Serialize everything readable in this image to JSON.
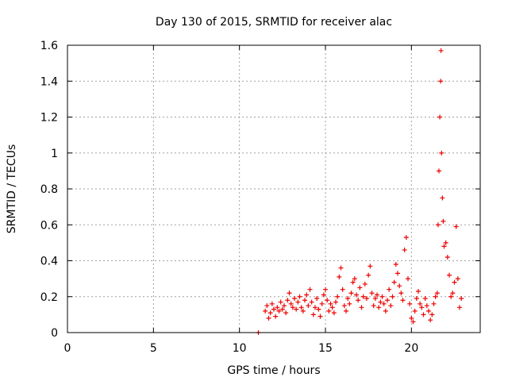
{
  "chart_data": {
    "type": "scatter",
    "title": "Day 130 of 2015, SRMTID for receiver alac",
    "xlabel": "GPS time / hours",
    "ylabel": "SRMTID / TECUs",
    "xlim": [
      0,
      24
    ],
    "ylim": [
      0,
      1.6
    ],
    "xticks": [
      0,
      5,
      10,
      15,
      20
    ],
    "xtick_labels": [
      "0",
      "5",
      "10",
      "15",
      "20"
    ],
    "yticks": [
      0,
      0.2,
      0.4,
      0.6,
      0.8,
      1.0,
      1.2,
      1.4,
      1.6
    ],
    "ytick_labels": [
      "0",
      "0.2",
      "0.4",
      "0.6",
      "0.8",
      "1",
      "1.2",
      "1.4",
      "1.6"
    ],
    "grid": true,
    "marker": "+",
    "colors": {
      "series": "#ee0000",
      "grid": "#a0a0a0",
      "axes": "#000000"
    },
    "series": [
      {
        "name": "SRMTID",
        "points": [
          [
            11.1,
            0.0
          ],
          [
            11.5,
            0.12
          ],
          [
            11.6,
            0.15
          ],
          [
            11.7,
            0.08
          ],
          [
            11.8,
            0.11
          ],
          [
            11.9,
            0.16
          ],
          [
            12.0,
            0.13
          ],
          [
            12.1,
            0.09
          ],
          [
            12.2,
            0.14
          ],
          [
            12.3,
            0.12
          ],
          [
            12.4,
            0.17
          ],
          [
            12.5,
            0.13
          ],
          [
            12.6,
            0.15
          ],
          [
            12.7,
            0.11
          ],
          [
            12.8,
            0.18
          ],
          [
            12.9,
            0.22
          ],
          [
            13.0,
            0.16
          ],
          [
            13.1,
            0.14
          ],
          [
            13.2,
            0.19
          ],
          [
            13.3,
            0.13
          ],
          [
            13.4,
            0.17
          ],
          [
            13.5,
            0.2
          ],
          [
            13.6,
            0.14
          ],
          [
            13.7,
            0.12
          ],
          [
            13.8,
            0.18
          ],
          [
            13.9,
            0.21
          ],
          [
            14.0,
            0.15
          ],
          [
            14.1,
            0.24
          ],
          [
            14.2,
            0.17
          ],
          [
            14.3,
            0.1
          ],
          [
            14.4,
            0.14
          ],
          [
            14.5,
            0.19
          ],
          [
            14.6,
            0.13
          ],
          [
            14.7,
            0.09
          ],
          [
            14.8,
            0.16
          ],
          [
            14.9,
            0.21
          ],
          [
            15.0,
            0.24
          ],
          [
            15.1,
            0.18
          ],
          [
            15.2,
            0.12
          ],
          [
            15.3,
            0.16
          ],
          [
            15.4,
            0.14
          ],
          [
            15.5,
            0.11
          ],
          [
            15.6,
            0.17
          ],
          [
            15.7,
            0.2
          ],
          [
            15.8,
            0.31
          ],
          [
            15.9,
            0.36
          ],
          [
            16.0,
            0.24
          ],
          [
            16.1,
            0.15
          ],
          [
            16.2,
            0.12
          ],
          [
            16.3,
            0.19
          ],
          [
            16.4,
            0.16
          ],
          [
            16.5,
            0.22
          ],
          [
            16.6,
            0.28
          ],
          [
            16.7,
            0.3
          ],
          [
            16.8,
            0.21
          ],
          [
            16.9,
            0.18
          ],
          [
            17.0,
            0.25
          ],
          [
            17.1,
            0.14
          ],
          [
            17.2,
            0.2
          ],
          [
            17.3,
            0.27
          ],
          [
            17.4,
            0.19
          ],
          [
            17.5,
            0.32
          ],
          [
            17.6,
            0.37
          ],
          [
            17.7,
            0.22
          ],
          [
            17.8,
            0.15
          ],
          [
            17.9,
            0.19
          ],
          [
            18.0,
            0.21
          ],
          [
            18.1,
            0.14
          ],
          [
            18.2,
            0.17
          ],
          [
            18.3,
            0.2
          ],
          [
            18.4,
            0.16
          ],
          [
            18.5,
            0.12
          ],
          [
            18.6,
            0.18
          ],
          [
            18.7,
            0.24
          ],
          [
            18.8,
            0.15
          ],
          [
            18.9,
            0.2
          ],
          [
            19.0,
            0.28
          ],
          [
            19.1,
            0.38
          ],
          [
            19.2,
            0.33
          ],
          [
            19.3,
            0.26
          ],
          [
            19.4,
            0.22
          ],
          [
            19.5,
            0.18
          ],
          [
            19.6,
            0.46
          ],
          [
            19.7,
            0.53
          ],
          [
            19.8,
            0.3
          ],
          [
            19.9,
            0.16
          ],
          [
            20.0,
            0.08
          ],
          [
            20.1,
            0.06
          ],
          [
            20.2,
            0.12
          ],
          [
            20.3,
            0.19
          ],
          [
            20.4,
            0.23
          ],
          [
            20.5,
            0.16
          ],
          [
            20.6,
            0.14
          ],
          [
            20.7,
            0.1
          ],
          [
            20.8,
            0.19
          ],
          [
            20.9,
            0.15
          ],
          [
            21.0,
            0.12
          ],
          [
            21.1,
            0.07
          ],
          [
            21.2,
            0.1
          ],
          [
            21.3,
            0.16
          ],
          [
            21.4,
            0.2
          ],
          [
            21.5,
            0.22
          ],
          [
            21.55,
            0.6
          ],
          [
            21.6,
            0.9
          ],
          [
            21.65,
            1.2
          ],
          [
            21.7,
            1.4
          ],
          [
            21.72,
            1.57
          ],
          [
            21.75,
            1.0
          ],
          [
            21.8,
            0.75
          ],
          [
            21.85,
            0.62
          ],
          [
            21.9,
            0.48
          ],
          [
            22.0,
            0.5
          ],
          [
            22.1,
            0.42
          ],
          [
            22.2,
            0.32
          ],
          [
            22.3,
            0.2
          ],
          [
            22.4,
            0.22
          ],
          [
            22.5,
            0.28
          ],
          [
            22.6,
            0.59
          ],
          [
            22.7,
            0.3
          ],
          [
            22.8,
            0.14
          ],
          [
            22.9,
            0.19
          ]
        ]
      }
    ]
  }
}
